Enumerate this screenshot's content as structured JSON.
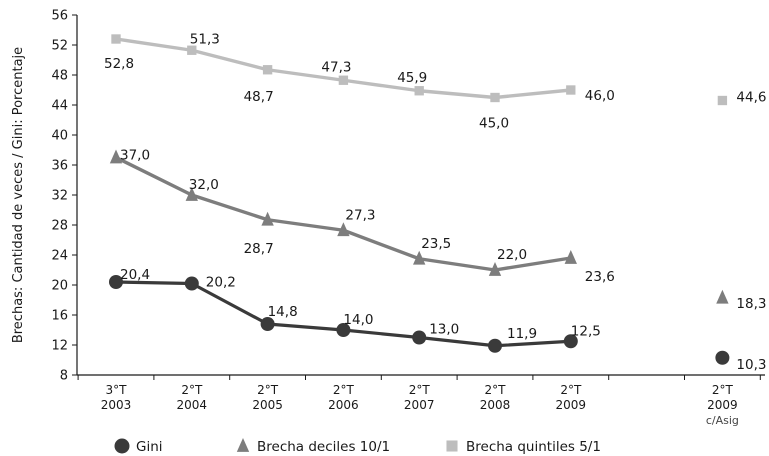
{
  "chart_data": {
    "type": "line",
    "ylabel": "Brechas: Cantidad de veces / Gini: Porcentaje",
    "xlabel": "",
    "ylim": [
      8,
      56
    ],
    "yticks": [
      8,
      12,
      16,
      20,
      24,
      28,
      32,
      36,
      40,
      44,
      48,
      52,
      56
    ],
    "categories": [
      {
        "line1": "3°T",
        "line2": "2003",
        "line3": ""
      },
      {
        "line1": "2°T",
        "line2": "2004",
        "line3": ""
      },
      {
        "line1": "2°T",
        "line2": "2005",
        "line3": ""
      },
      {
        "line1": "2°T",
        "line2": "2006",
        "line3": ""
      },
      {
        "line1": "2°T",
        "line2": "2007",
        "line3": ""
      },
      {
        "line1": "2°T",
        "line2": "2008",
        "line3": ""
      },
      {
        "line1": "2°T",
        "line2": "2009",
        "line3": ""
      },
      {
        "line1": "",
        "line2": "",
        "line3": ""
      },
      {
        "line1": "2°T",
        "line2": "2009",
        "line3": "c/Asig"
      }
    ],
    "series": [
      {
        "name": "Gini",
        "marker": "circle",
        "color": "#3a3a3a",
        "values": [
          20.4,
          20.2,
          14.8,
          14.0,
          13.0,
          11.9,
          12.5,
          null,
          10.3
        ],
        "labels": [
          "20,4",
          "20,2",
          "14,8",
          "14,0",
          "13,0",
          "11,9",
          "12,5",
          null,
          "10,3"
        ]
      },
      {
        "name": "Brecha deciles 10/1",
        "marker": "triangle",
        "color": "#7d7d7d",
        "values": [
          37.0,
          32.0,
          28.7,
          27.3,
          23.5,
          22.0,
          23.6,
          null,
          18.3
        ],
        "labels": [
          "37,0",
          "32,0",
          "28,7",
          "27,3",
          "23,5",
          "22,0",
          "23,6",
          null,
          "18,3"
        ]
      },
      {
        "name": "Brecha quintiles 5/1",
        "marker": "square",
        "color": "#bdbdbd",
        "values": [
          52.8,
          51.3,
          48.7,
          47.3,
          45.9,
          45.0,
          46.0,
          null,
          44.6
        ],
        "labels": [
          "52,8",
          "51,3",
          "48,7",
          "47,3",
          "45,9",
          "45,0",
          "46,0",
          null,
          "44,6"
        ]
      }
    ],
    "legend": {
      "position": "bottom"
    }
  }
}
